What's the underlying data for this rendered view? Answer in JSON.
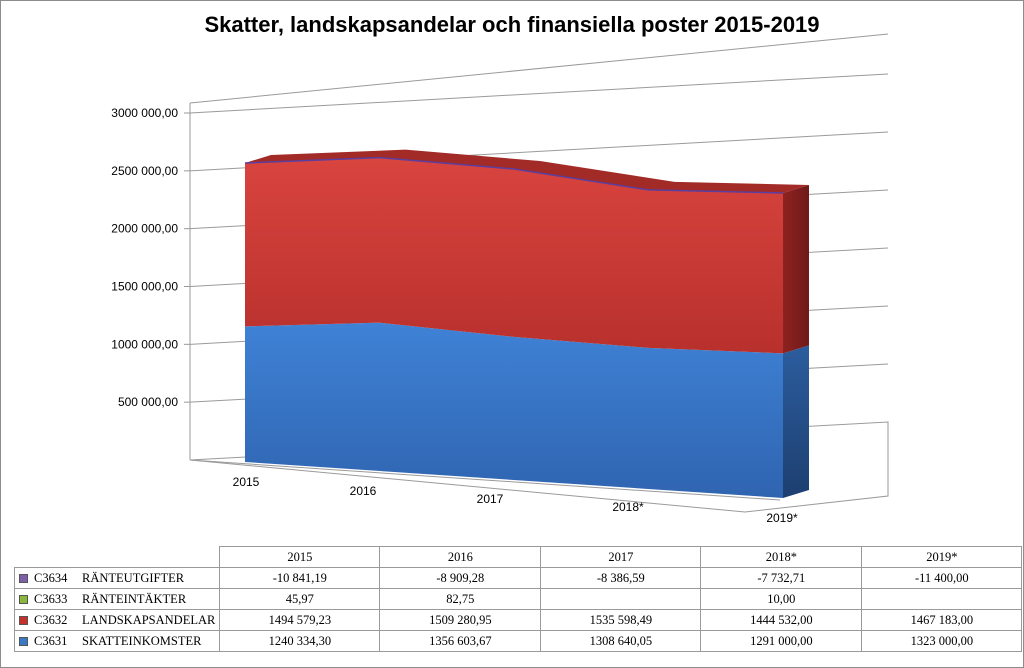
{
  "chart_data": {
    "type": "area",
    "title": "Skatter, landskapsandelar och finansiella poster 2015-2019",
    "categories": [
      "2015",
      "2016",
      "2017",
      "2018*",
      "2019*"
    ],
    "ylim": [
      0,
      3000000
    ],
    "yticks": [
      {
        "value": 500000,
        "label": "500 000,00"
      },
      {
        "value": 1000000,
        "label": "1000 000,00"
      },
      {
        "value": 1500000,
        "label": "1500 000,00"
      },
      {
        "value": 2000000,
        "label": "2000 000,00"
      },
      {
        "value": 2500000,
        "label": "2500 000,00"
      },
      {
        "value": 3000000,
        "label": "3000 000,00"
      }
    ],
    "grid": true,
    "legend": "table-below",
    "series": [
      {
        "code": "C3634",
        "name": "RÄNTEUTGIFTER",
        "color": "#7f5fa8",
        "values": [
          -10841.19,
          -8909.28,
          -8386.59,
          -7732.71,
          -11400.0
        ],
        "labels": [
          "-10 841,19",
          "-8 909,28",
          "-8 386,59",
          "-7 732,71",
          "-11 400,00"
        ]
      },
      {
        "code": "C3633",
        "name": "RÄNTEINTÄKTER",
        "color": "#8ab83c",
        "values": [
          45.97,
          82.75,
          null,
          10.0,
          null
        ],
        "labels": [
          "45,97",
          "82,75",
          "",
          "10,00",
          ""
        ]
      },
      {
        "code": "C3632",
        "name": "LANDSKAPSANDELAR",
        "color": "#c8302c",
        "values": [
          1494579.23,
          1509280.95,
          1535598.49,
          1444532.0,
          1467183.0
        ],
        "labels": [
          "1494 579,23",
          "1509 280,95",
          "1535 598,49",
          "1444 532,00",
          "1467 183,00"
        ]
      },
      {
        "code": "C3631",
        "name": "SKATTEINKOMSTER",
        "color": "#3a78c8",
        "values": [
          1240334.3,
          1356603.67,
          1308640.05,
          1291000.0,
          1323000.0
        ],
        "labels": [
          "1240 334,30",
          "1356 603,67",
          "1308 640,05",
          "1291 000,00",
          "1323 000,00"
        ]
      }
    ]
  }
}
